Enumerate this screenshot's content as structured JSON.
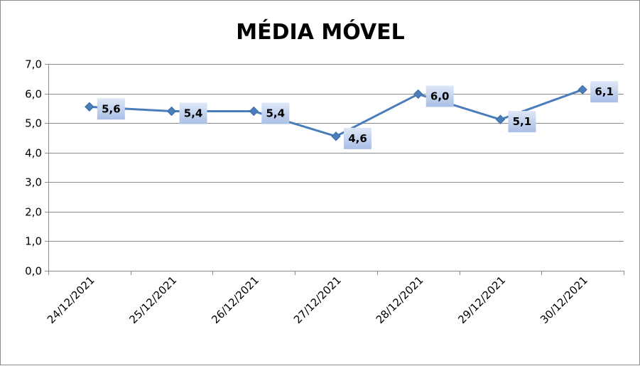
{
  "chart_data": {
    "type": "line",
    "title": "MÉDIA MÓVEL",
    "xlabel": "",
    "ylabel": "",
    "categories": [
      "24/12/2021",
      "25/12/2021",
      "26/12/2021",
      "27/12/2021",
      "28/12/2021",
      "29/12/2021",
      "30/12/2021"
    ],
    "series": [
      {
        "values": [
          5.55,
          5.4,
          5.4,
          4.55,
          5.98,
          5.12,
          6.13
        ],
        "labels": [
          "5,6",
          "5,4",
          "5,4",
          "4,6",
          "6,0",
          "5,1",
          "6,1"
        ],
        "color": "#4a7ebb",
        "marker": "diamond"
      }
    ],
    "ylim": [
      0,
      7
    ],
    "y_ticks": [
      "0,0",
      "1,0",
      "2,0",
      "3,0",
      "4,0",
      "5,0",
      "6,0",
      "7,0"
    ],
    "grid": true,
    "legend": "none",
    "label_box_color": "#c6d4ef"
  }
}
